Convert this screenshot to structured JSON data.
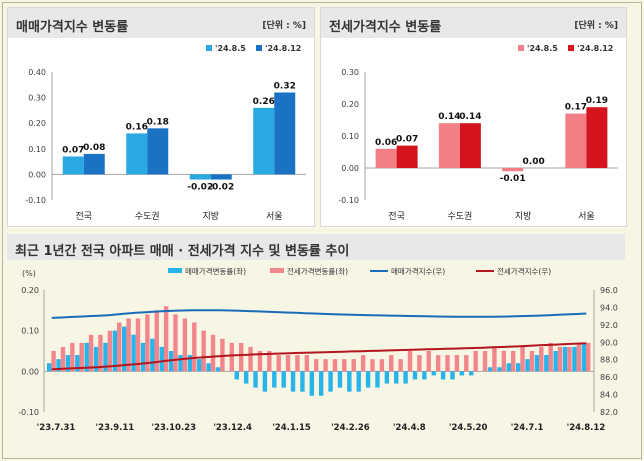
{
  "panels": {
    "sale": {
      "title": "매매가격지수 변동률",
      "unit": "[단위 : %]"
    },
    "jeonse": {
      "title": "전세가격지수 변동률",
      "unit": "[단위 : %]"
    },
    "trend": {
      "title": "최근 1년간 전국 아파트 매매 · 전세가격 지수 및 변동률 추이"
    }
  },
  "chart_data": [
    {
      "type": "bar",
      "title": "매매가격지수 변동률",
      "categories": [
        "전국",
        "수도권",
        "지방",
        "서울"
      ],
      "series": [
        {
          "name": "'24.8.5",
          "values": [
            0.07,
            0.16,
            -0.02,
            0.26
          ],
          "labels": [
            "0.07",
            "0.16",
            "-0.02",
            "0.26"
          ],
          "color": "#29a9e1"
        },
        {
          "name": "'24.8.12",
          "values": [
            0.08,
            0.18,
            -0.02,
            0.32
          ],
          "labels": [
            "0.08",
            "0.18",
            "-0.02",
            "0.32"
          ],
          "color": "#1a72c4"
        }
      ],
      "ylim": [
        -0.1,
        0.4
      ],
      "yticks": [
        "-0.10",
        "0.00",
        "0.10",
        "0.20",
        "0.30",
        "0.40"
      ],
      "legend": "top-right"
    },
    {
      "type": "bar",
      "title": "전세가격지수 변동률",
      "categories": [
        "전국",
        "수도권",
        "지방",
        "서울"
      ],
      "series": [
        {
          "name": "'24.8.5",
          "values": [
            0.06,
            0.14,
            -0.01,
            0.17
          ],
          "labels": [
            "0.06",
            "0.14",
            "-0.01",
            "0.17"
          ],
          "color": "#f27f85"
        },
        {
          "name": "'24.8.12",
          "values": [
            0.07,
            0.14,
            0.0,
            0.19
          ],
          "labels": [
            "0.07",
            "0.14",
            "0.00",
            "0.19"
          ],
          "color": "#d4141d"
        }
      ],
      "ylim": [
        -0.1,
        0.3
      ],
      "yticks": [
        "-0.10",
        "0.00",
        "0.10",
        "0.20",
        "0.30"
      ],
      "legend": "top-right"
    },
    {
      "type": "bar+line",
      "title": "최근 1년간 전국 아파트 매매 · 전세가격 지수 및 변동률 추이",
      "ylabel_left": "(%)",
      "ylim_left": [
        -0.1,
        0.2
      ],
      "yticks_left": [
        "-0.10",
        "0.00",
        "0.10",
        "0.20"
      ],
      "ylim_right": [
        82.0,
        96.0
      ],
      "yticks_right": [
        "82.0",
        "84.0",
        "86.0",
        "88.0",
        "90.0",
        "92.0",
        "94.0",
        "96.0"
      ],
      "xtick_labels": [
        "'23.7.31",
        "'23.9.11",
        "'23.10.23",
        "'23.12.4",
        "'24.1.15",
        "'24.2.26",
        "'24.4.8",
        "'24.5.20",
        "'24.7.1",
        "'24.8.12"
      ],
      "legend": [
        "매매가격변동률(좌)",
        "전세가격변동률(좌)",
        "매매가격지수(우)",
        "전세가격지수(우)"
      ],
      "colors": {
        "sale_rate": "#27b4ea",
        "jeonse_rate": "#f2868b",
        "sale_index": "#1b6cb8",
        "jeonse_index": "#b3161e"
      },
      "sale_rate": [
        0.02,
        0.03,
        0.04,
        0.04,
        0.07,
        0.06,
        0.07,
        0.1,
        0.11,
        0.09,
        0.07,
        0.08,
        0.06,
        0.05,
        0.04,
        0.04,
        0.03,
        0.02,
        0.01,
        0.0,
        -0.02,
        -0.03,
        -0.04,
        -0.05,
        -0.04,
        -0.04,
        -0.05,
        -0.05,
        -0.06,
        -0.06,
        -0.05,
        -0.04,
        -0.05,
        -0.05,
        -0.04,
        -0.04,
        -0.03,
        -0.03,
        -0.03,
        -0.02,
        -0.02,
        -0.01,
        -0.02,
        -0.02,
        -0.01,
        -0.01,
        0.0,
        0.01,
        0.01,
        0.02,
        0.02,
        0.03,
        0.04,
        0.04,
        0.05,
        0.06,
        0.06,
        0.07
      ],
      "jeonse_rate": [
        0.05,
        0.06,
        0.07,
        0.07,
        0.09,
        0.09,
        0.1,
        0.12,
        0.13,
        0.13,
        0.14,
        0.15,
        0.16,
        0.14,
        0.13,
        0.12,
        0.1,
        0.09,
        0.08,
        0.07,
        0.07,
        0.06,
        0.05,
        0.05,
        0.04,
        0.04,
        0.04,
        0.04,
        0.03,
        0.03,
        0.03,
        0.03,
        0.03,
        0.04,
        0.03,
        0.03,
        0.04,
        0.03,
        0.05,
        0.04,
        0.05,
        0.04,
        0.04,
        0.04,
        0.04,
        0.05,
        0.05,
        0.06,
        0.05,
        0.05,
        0.06,
        0.05,
        0.06,
        0.07,
        0.06,
        0.06,
        0.07,
        0.07
      ],
      "sale_index": [
        92.8,
        92.85,
        92.9,
        92.95,
        93.0,
        93.05,
        93.1,
        93.2,
        93.3,
        93.38,
        93.45,
        93.52,
        93.58,
        93.62,
        93.65,
        93.67,
        93.68,
        93.68,
        93.67,
        93.65,
        93.62,
        93.58,
        93.54,
        93.5,
        93.46,
        93.42,
        93.38,
        93.34,
        93.3,
        93.26,
        93.22,
        93.19,
        93.16,
        93.13,
        93.1,
        93.08,
        93.06,
        93.04,
        93.02,
        93.0,
        92.98,
        92.96,
        92.95,
        92.94,
        92.93,
        92.93,
        92.93,
        92.94,
        92.95,
        92.97,
        93.0,
        93.03,
        93.06,
        93.1,
        93.15,
        93.2,
        93.25,
        93.3
      ],
      "jeonse_index": [
        86.9,
        86.95,
        87.0,
        87.05,
        87.1,
        87.15,
        87.22,
        87.3,
        87.4,
        87.5,
        87.6,
        87.72,
        87.85,
        87.97,
        88.08,
        88.18,
        88.27,
        88.35,
        88.42,
        88.48,
        88.53,
        88.58,
        88.62,
        88.66,
        88.7,
        88.73,
        88.77,
        88.8,
        88.83,
        88.86,
        88.89,
        88.92,
        88.95,
        88.98,
        89.01,
        89.04,
        89.07,
        89.1,
        89.13,
        89.16,
        89.19,
        89.22,
        89.25,
        89.28,
        89.31,
        89.34,
        89.38,
        89.42,
        89.46,
        89.5,
        89.55,
        89.6,
        89.65,
        89.7,
        89.75,
        89.8,
        89.85,
        89.9
      ]
    }
  ]
}
